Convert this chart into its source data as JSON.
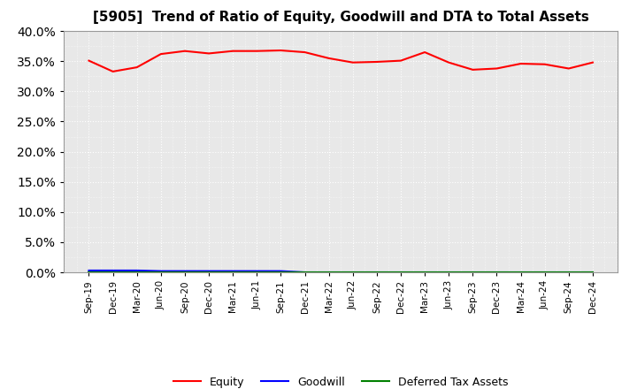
{
  "title": "[5905]  Trend of Ratio of Equity, Goodwill and DTA to Total Assets",
  "x_labels": [
    "Sep-19",
    "Dec-19",
    "Mar-20",
    "Jun-20",
    "Sep-20",
    "Dec-20",
    "Mar-21",
    "Jun-21",
    "Sep-21",
    "Dec-21",
    "Mar-22",
    "Jun-22",
    "Sep-22",
    "Dec-22",
    "Mar-23",
    "Jun-23",
    "Sep-23",
    "Dec-23",
    "Mar-24",
    "Jun-24",
    "Sep-24",
    "Dec-24"
  ],
  "equity": [
    35.1,
    33.3,
    34.0,
    36.2,
    36.7,
    36.3,
    36.7,
    36.7,
    36.8,
    36.5,
    35.5,
    34.8,
    34.9,
    35.1,
    36.5,
    34.8,
    33.6,
    33.8,
    34.6,
    34.5,
    33.8,
    34.8
  ],
  "goodwill": [
    0.3,
    0.3,
    0.3,
    0.2,
    0.2,
    0.2,
    0.2,
    0.2,
    0.2,
    0.0,
    0.0,
    0.0,
    0.0,
    0.0,
    0.0,
    0.0,
    0.0,
    0.0,
    0.0,
    0.0,
    0.0,
    0.0
  ],
  "dta": [
    0.0,
    0.0,
    0.0,
    0.0,
    0.0,
    0.0,
    0.0,
    0.0,
    0.0,
    0.0,
    0.0,
    0.0,
    0.0,
    0.0,
    0.0,
    0.0,
    0.0,
    0.0,
    0.0,
    0.0,
    0.0,
    0.0
  ],
  "equity_color": "#ff0000",
  "goodwill_color": "#0000ff",
  "dta_color": "#008000",
  "ylim": [
    0,
    40
  ],
  "yticks": [
    0.0,
    5.0,
    10.0,
    15.0,
    20.0,
    25.0,
    30.0,
    35.0,
    40.0
  ],
  "plot_bg_color": "#e8e8e8",
  "fig_bg_color": "#ffffff",
  "grid_color": "#ffffff",
  "legend_labels": [
    "Equity",
    "Goodwill",
    "Deferred Tax Assets"
  ]
}
